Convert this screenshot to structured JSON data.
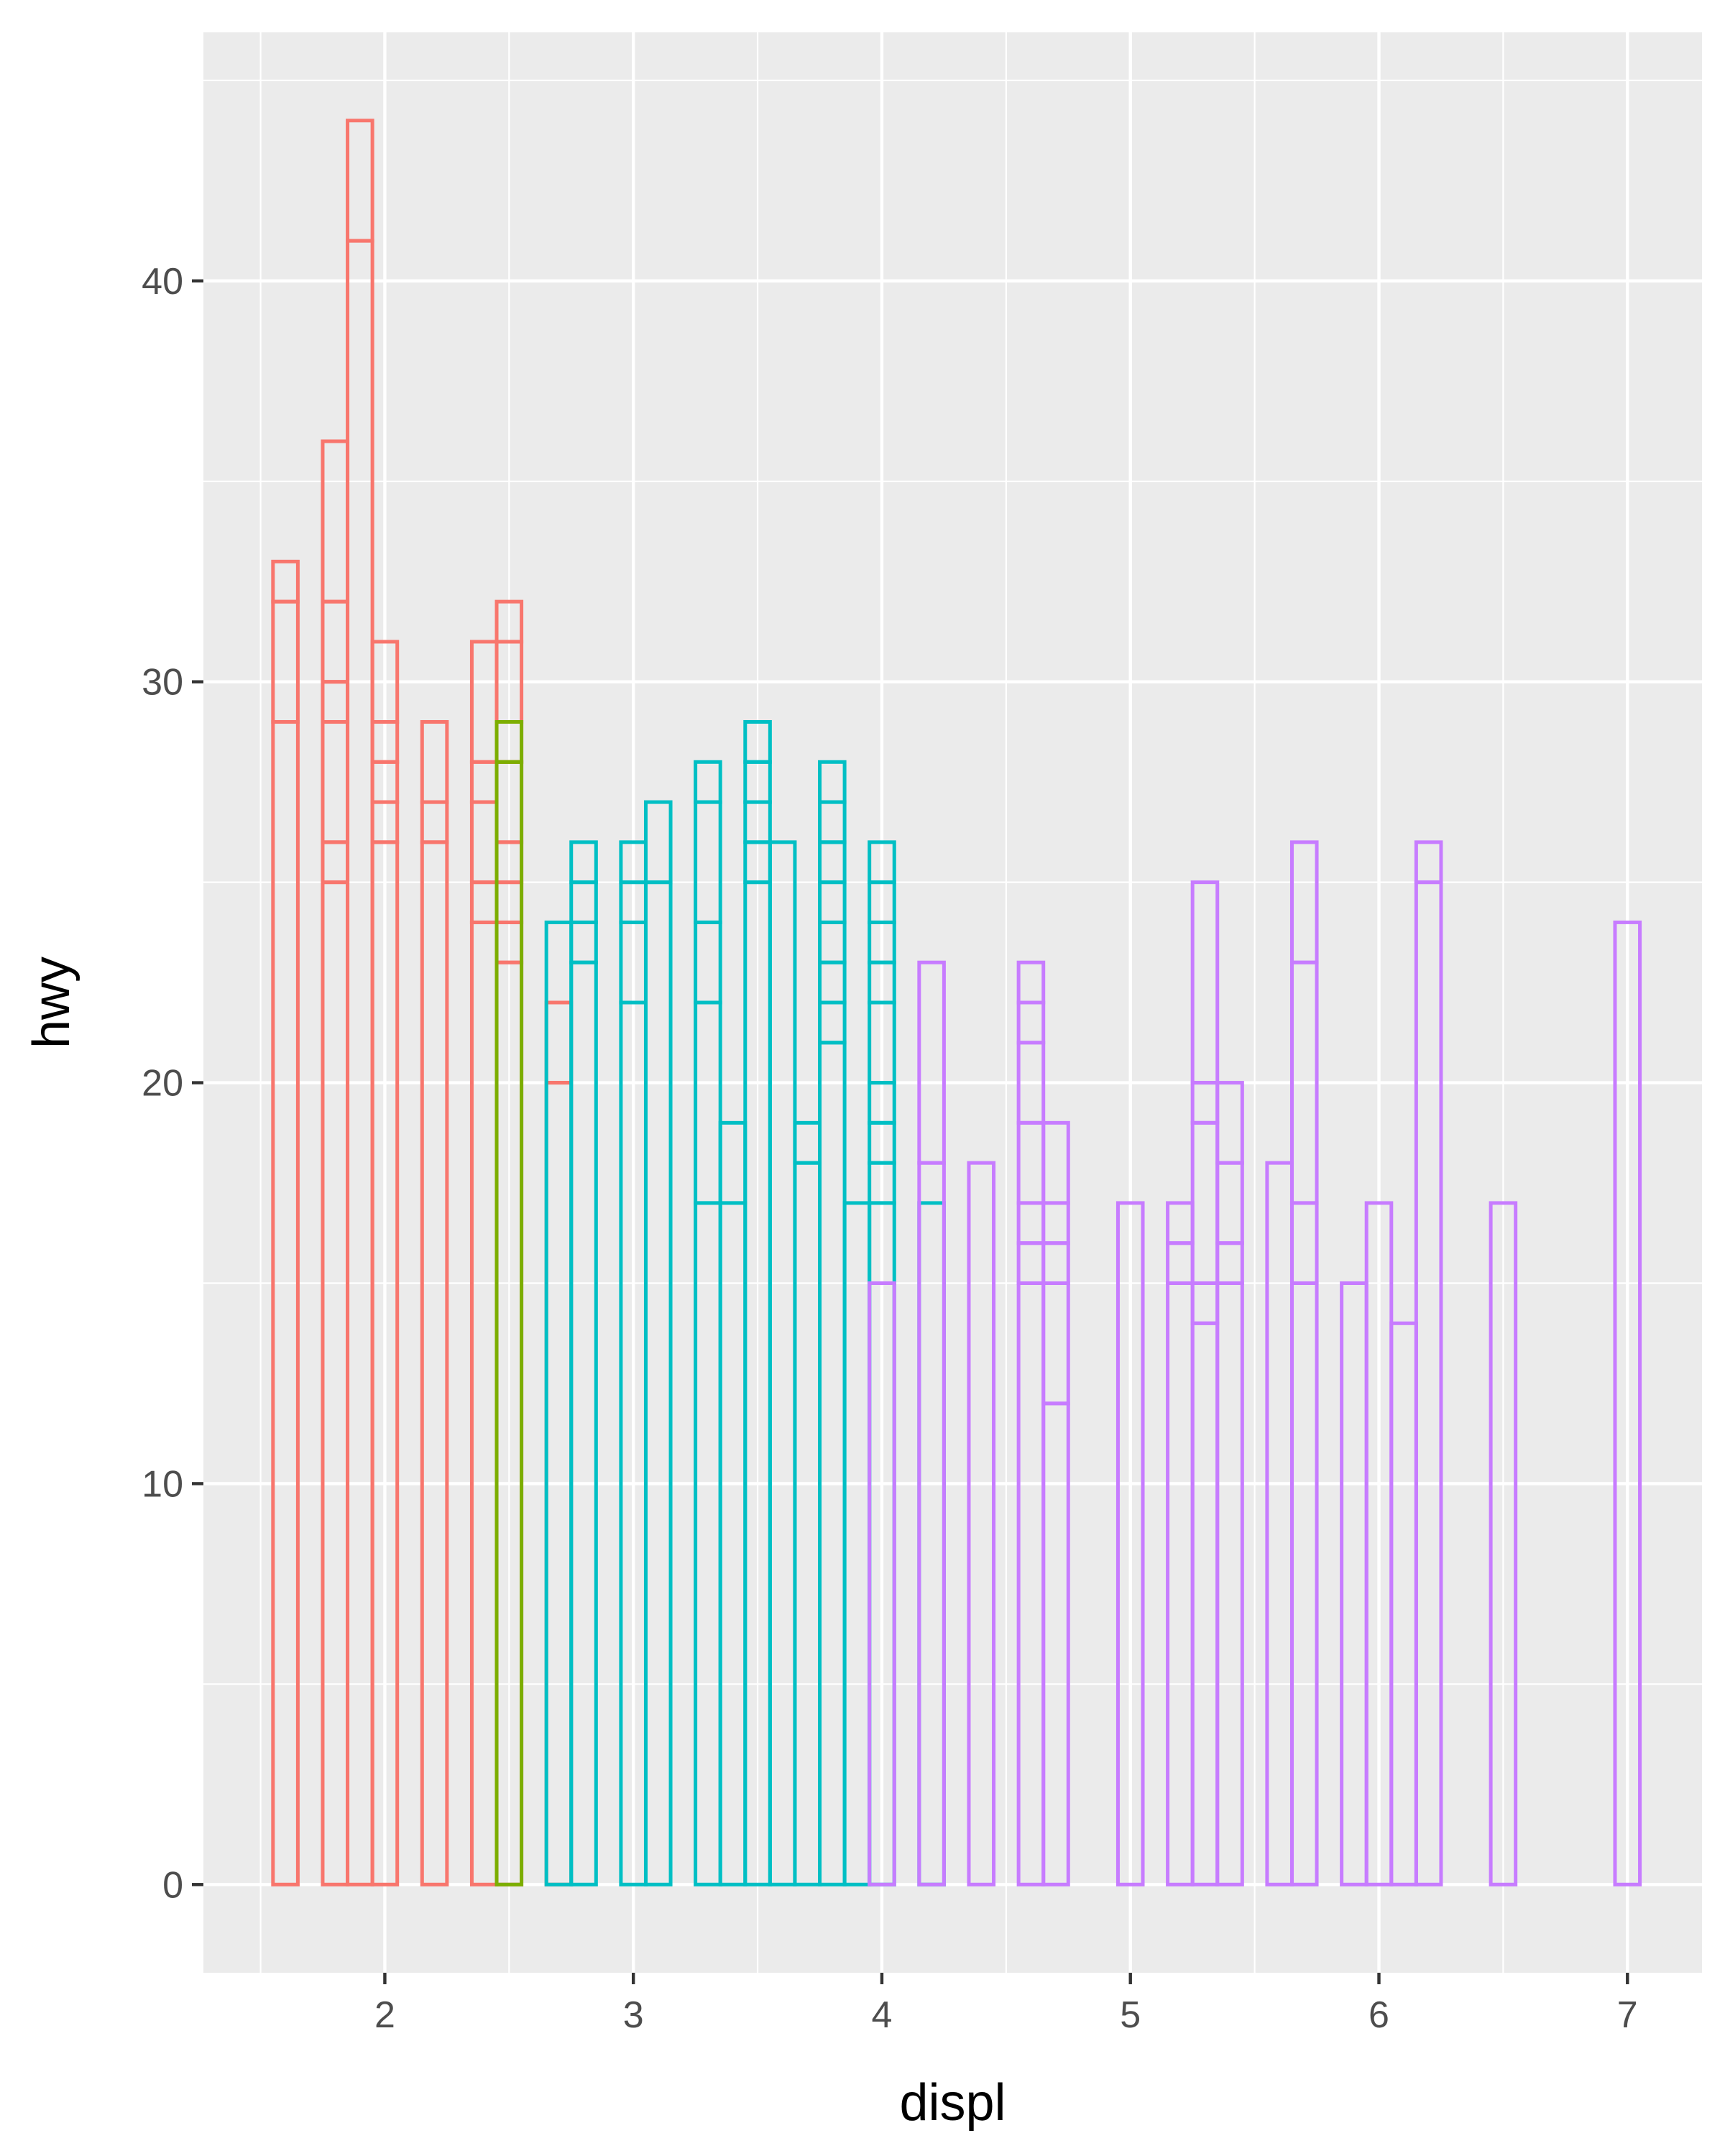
{
  "chart_data": {
    "type": "bar",
    "subtype": "stacked-outline",
    "xlabel": "displ",
    "ylabel": "hwy",
    "xlim": [
      1.27,
      7.3
    ],
    "ylim": [
      -2.2,
      46.2
    ],
    "x_ticks": [
      2,
      3,
      4,
      5,
      6,
      7
    ],
    "y_ticks": [
      0,
      10,
      20,
      30,
      40
    ],
    "bar_width": 0.1,
    "background": "#ebebeb",
    "grid_color": "#ffffff",
    "colors": {
      "red": "#f8766d",
      "green": "#7cae00",
      "cyan": "#00bfc4",
      "purple": "#c77cff"
    },
    "series": [
      {
        "name": "red",
        "bars": [
          {
            "x": 1.6,
            "segments": [
              29,
              3,
              1
            ]
          },
          {
            "x": 1.8,
            "segments": [
              25,
              1,
              3,
              1,
              2,
              4
            ]
          },
          {
            "x": 1.9,
            "segments": [
              41,
              3
            ]
          },
          {
            "x": 2.0,
            "segments": [
              26,
              1,
              1,
              1,
              2
            ]
          },
          {
            "x": 2.2,
            "segments": [
              26,
              1,
              2
            ]
          },
          {
            "x": 2.4,
            "segments": [
              24,
              1,
              2,
              1,
              3
            ]
          },
          {
            "x": 2.5,
            "segments": [
              23,
              1,
              1,
              1,
              2,
              1,
              2,
              1
            ]
          },
          {
            "x": 2.7,
            "segments": [
              20,
              2
            ]
          }
        ]
      },
      {
        "name": "green",
        "bars": [
          {
            "x": 2.5,
            "segments": [
              28,
              1
            ]
          }
        ]
      },
      {
        "name": "cyan",
        "bars": [
          {
            "x": 2.7,
            "segments": [
              24
            ]
          },
          {
            "x": 2.8,
            "segments": [
              23,
              1,
              1,
              1
            ]
          },
          {
            "x": 3.0,
            "segments": [
              22,
              2,
              1,
              1
            ]
          },
          {
            "x": 3.1,
            "segments": [
              25,
              2
            ]
          },
          {
            "x": 3.3,
            "segments": [
              17,
              5,
              2,
              3,
              1
            ]
          },
          {
            "x": 3.4,
            "segments": [
              17,
              2
            ]
          },
          {
            "x": 3.5,
            "segments": [
              25,
              1,
              1,
              1,
              1
            ]
          },
          {
            "x": 3.6,
            "segments": [
              26
            ]
          },
          {
            "x": 3.7,
            "segments": [
              18,
              1
            ]
          },
          {
            "x": 3.8,
            "segments": [
              21,
              1,
              1,
              1,
              1,
              1,
              1,
              1
            ]
          },
          {
            "x": 3.9,
            "segments": [
              17
            ]
          },
          {
            "x": 4.0,
            "segments": [
              15,
              2,
              1,
              1,
              1,
              2,
              1,
              1,
              1,
              1
            ]
          },
          {
            "x": 4.2,
            "segments": [
              17
            ]
          }
        ]
      },
      {
        "name": "purple",
        "bars": [
          {
            "x": 4.0,
            "segments": [
              15
            ]
          },
          {
            "x": 4.2,
            "segments": [
              18,
              5
            ]
          },
          {
            "x": 4.4,
            "segments": [
              18
            ]
          },
          {
            "x": 4.6,
            "segments": [
              15,
              1,
              1,
              2,
              2,
              1,
              1
            ]
          },
          {
            "x": 4.7,
            "segments": [
              12,
              3,
              1,
              1,
              2
            ]
          },
          {
            "x": 5.0,
            "segments": [
              17
            ]
          },
          {
            "x": 5.2,
            "segments": [
              15,
              1,
              1
            ]
          },
          {
            "x": 5.3,
            "segments": [
              14,
              1,
              4,
              1,
              5
            ]
          },
          {
            "x": 5.4,
            "segments": [
              15,
              1,
              2,
              2
            ]
          },
          {
            "x": 5.6,
            "segments": [
              18
            ]
          },
          {
            "x": 5.7,
            "segments": [
              15,
              2,
              6,
              3
            ]
          },
          {
            "x": 5.9,
            "segments": [
              15
            ]
          },
          {
            "x": 6.0,
            "segments": [
              17
            ]
          },
          {
            "x": 6.1,
            "segments": [
              14
            ]
          },
          {
            "x": 6.2,
            "segments": [
              25,
              1
            ]
          },
          {
            "x": 6.5,
            "segments": [
              17
            ]
          },
          {
            "x": 7.0,
            "segments": [
              24
            ]
          }
        ]
      }
    ]
  }
}
